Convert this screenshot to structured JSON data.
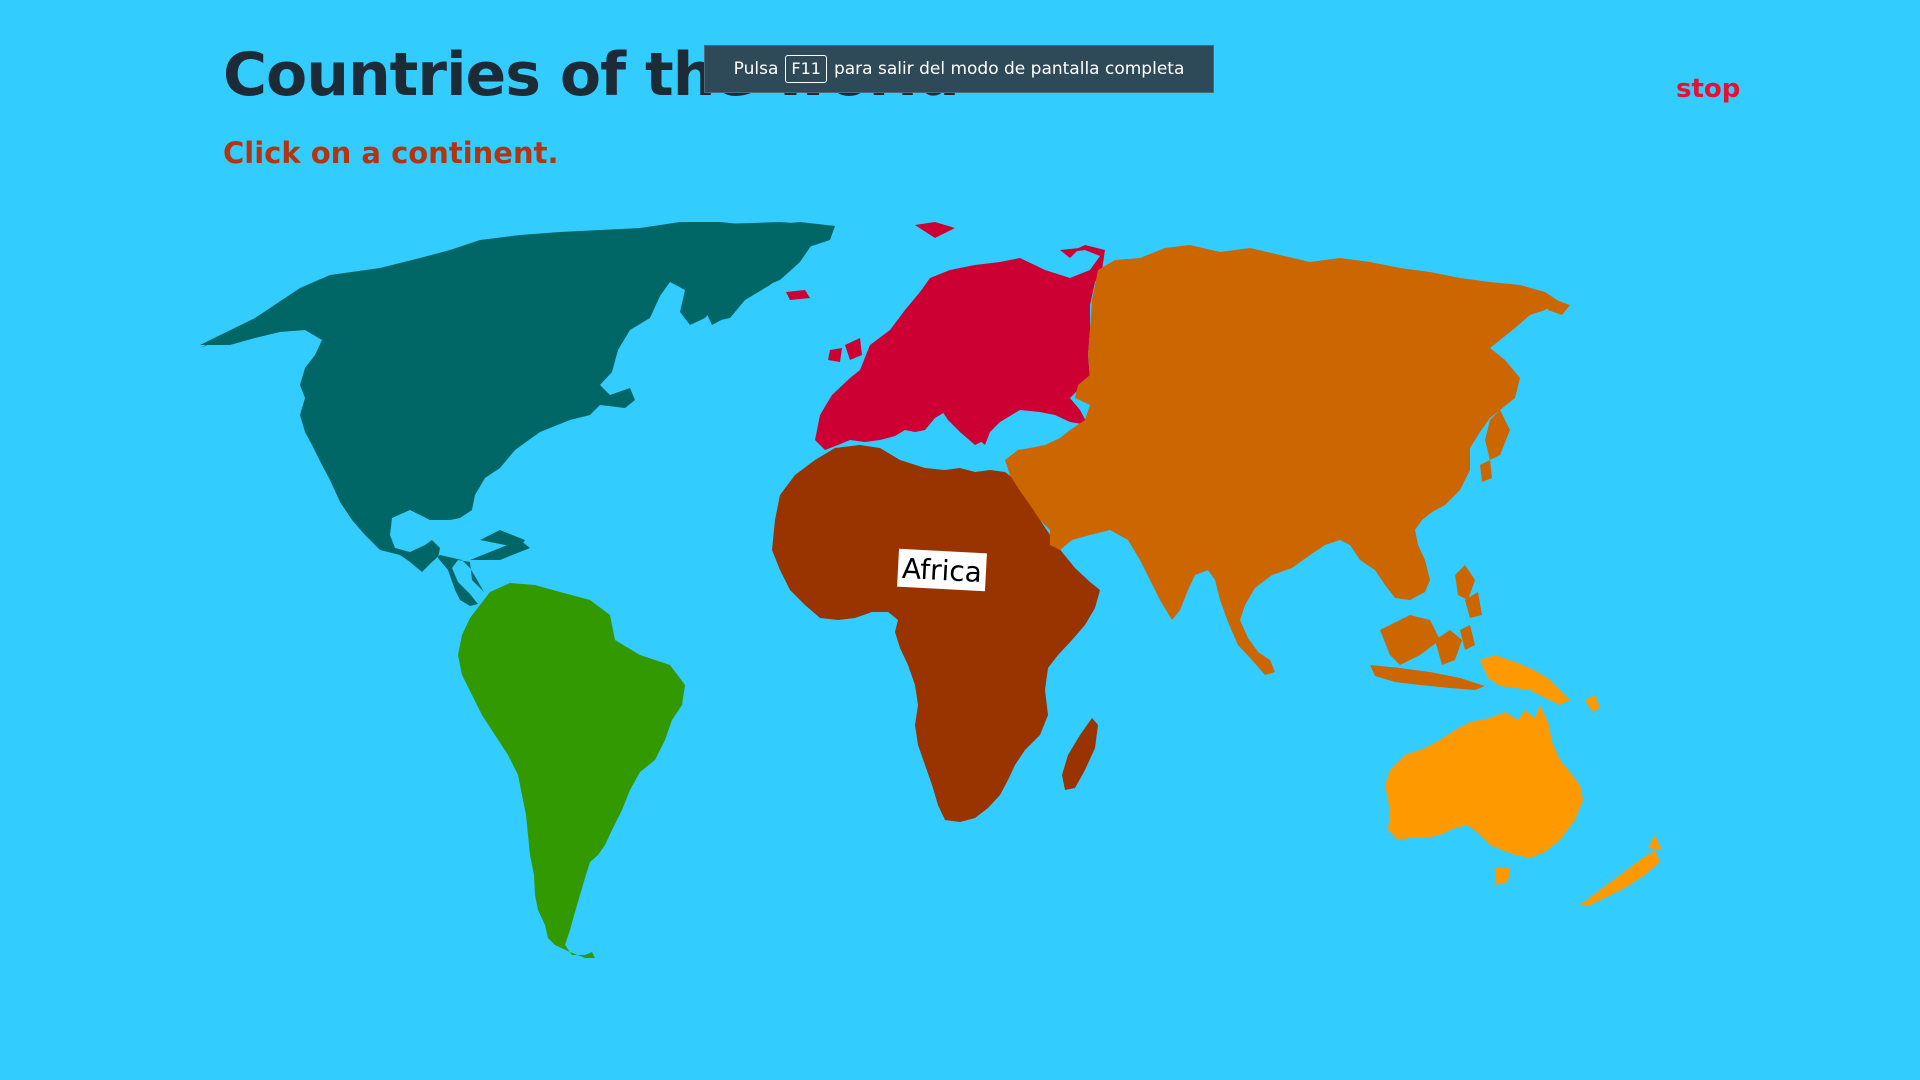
{
  "page": {
    "title": "Countries of the world",
    "instruction": "Click on a continent.",
    "stop_label": "stop"
  },
  "fullscreen_notice": {
    "before": "Pulsa",
    "key": "F11",
    "after": "para salir del modo de pantalla completa"
  },
  "map": {
    "continents": [
      {
        "name": "North America",
        "color": "#006666"
      },
      {
        "name": "South America",
        "color": "#339900"
      },
      {
        "name": "Europe",
        "color": "#cc0033"
      },
      {
        "name": "Africa",
        "color": "#993300"
      },
      {
        "name": "Asia",
        "color": "#cc6600"
      },
      {
        "name": "Oceania",
        "color": "#ff9900"
      }
    ],
    "label": "Africa"
  },
  "colors": {
    "background": "#33ccff",
    "title": "#1d2b36",
    "instruction": "#b3350f",
    "stop": "#e8102c"
  }
}
